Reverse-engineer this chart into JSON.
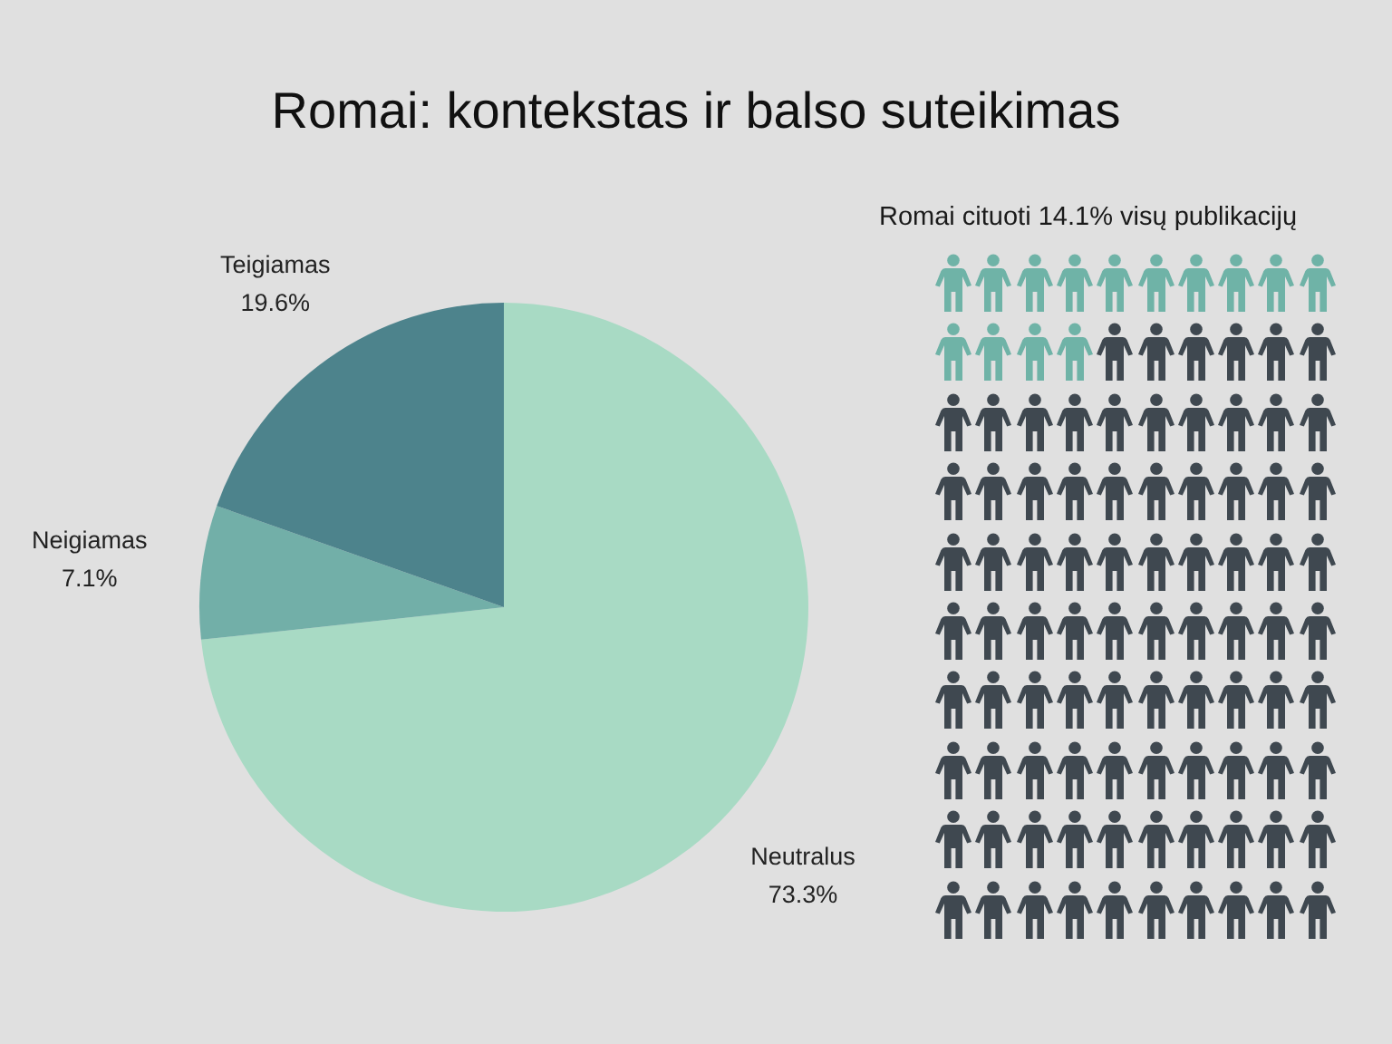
{
  "chart_data": [
    {
      "type": "pie",
      "title": "Romai: kontekstas ir balso suteikimas",
      "categories": [
        "Neutralus",
        "Neigiamas",
        "Teigiamas"
      ],
      "values": [
        73.3,
        7.1,
        19.6
      ],
      "value_labels": [
        "73.3%",
        "7.1%",
        "19.6%"
      ],
      "colors": [
        "#a8dac4",
        "#72afa8",
        "#4d838c"
      ],
      "legend": false
    },
    {
      "type": "other",
      "title": "Romai cituoti",
      "values": [
        14.1
      ],
      "value_labels": [
        "14.1%"
      ],
      "annotations": [
        "visų publikacijų"
      ],
      "colors": [
        "#6fb3a7"
      ]
    }
  ]
}
